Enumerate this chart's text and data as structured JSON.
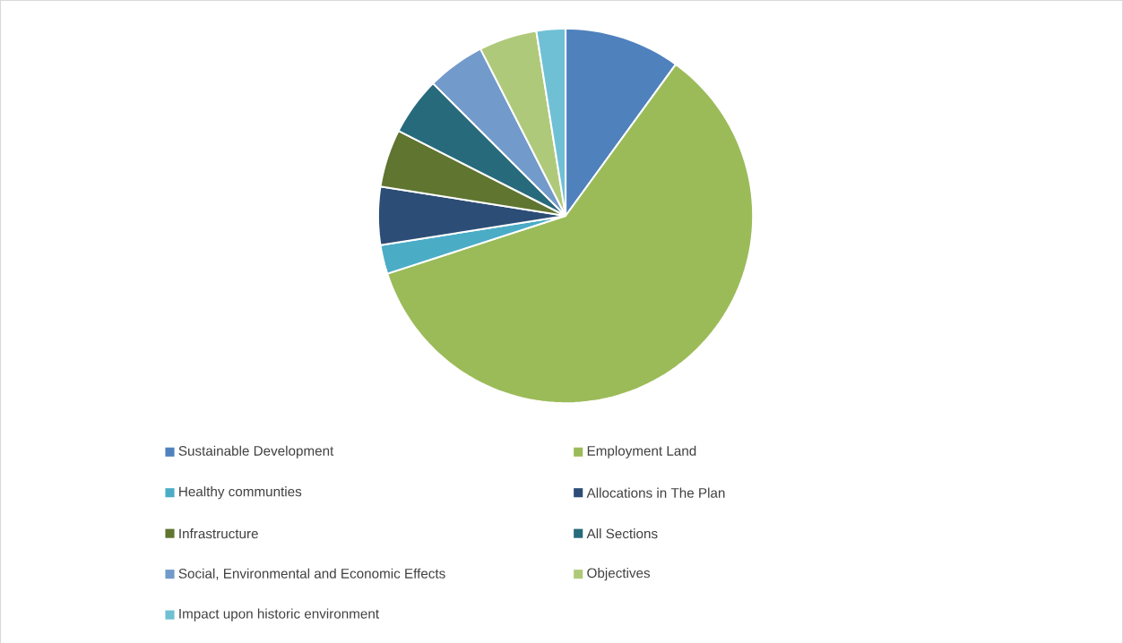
{
  "chart_data": {
    "type": "pie",
    "categories": [
      "Sustainable Development",
      "Employment Land",
      "Healthy communties",
      "Allocations in The Plan",
      "Infrastructure",
      "All Sections",
      "Social, Environmental and Economic Effects",
      "Objectives",
      "Impact upon historic environment"
    ],
    "values": [
      10,
      60,
      2.5,
      5,
      5,
      5,
      5,
      5,
      2.5
    ],
    "colors": [
      "#4f81bd",
      "#9bbb59",
      "#4bacc6",
      "#2c4d75",
      "#5f7530",
      "#276a7c",
      "#729aca",
      "#afc97a",
      "#6fc0d4"
    ],
    "legend": "bottom"
  }
}
